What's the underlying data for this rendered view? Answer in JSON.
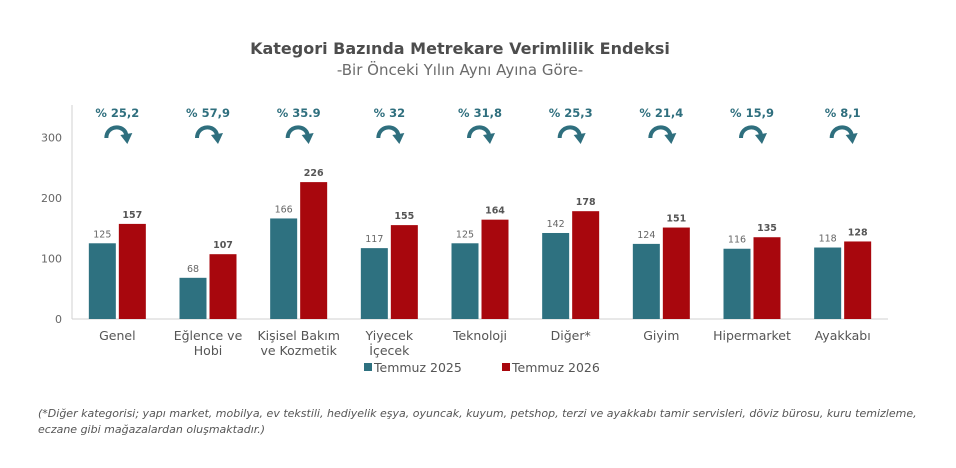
{
  "chart_data": {
    "type": "bar",
    "title": "Kategori Bazında Metrekare Verimlilik Endeksi",
    "subtitle": "-Bir Önceki Yılın Aynı Ayına Göre-",
    "categories": [
      [
        "Genel"
      ],
      [
        "Eğlence ve",
        "Hobi"
      ],
      [
        "Kişisel Bakım",
        "ve Kozmetik"
      ],
      [
        "Yiyecek",
        "İçecek"
      ],
      [
        "Teknoloji"
      ],
      [
        "Diğer*"
      ],
      [
        "Giyim"
      ],
      [
        "Hipermarket"
      ],
      [
        "Ayakkabı"
      ]
    ],
    "series": [
      {
        "name": "Temmuz 2025",
        "color": "#2e7180",
        "values": [
          125,
          68,
          166,
          117,
          125,
          142,
          124,
          116,
          118
        ]
      },
      {
        "name": "Temmuz 2026",
        "color": "#a8070d",
        "values": [
          157,
          107,
          226,
          155,
          164,
          178,
          151,
          135,
          128
        ]
      }
    ],
    "changes": [
      "% 25,2",
      "% 57,9",
      "% 35.9",
      "% 32",
      "% 31,8",
      "% 25,3",
      "% 21,4",
      "% 15,9",
      "% 8,1"
    ],
    "y_ticks": [
      0,
      100,
      200,
      300
    ],
    "ylim": [
      0,
      350
    ],
    "legend_position": "bottom-center",
    "arrow_color": "#2f6f7e",
    "grid": false
  },
  "footnote": "(*Diğer kategorisi; yapı market, mobilya, ev tekstili, hediyelik eşya, oyuncak, kuyum, petshop, terzi ve ayakkabı tamir servisleri, döviz bürosu, kuru temizleme, eczane gibi mağazalardan oluşmaktadır.)"
}
